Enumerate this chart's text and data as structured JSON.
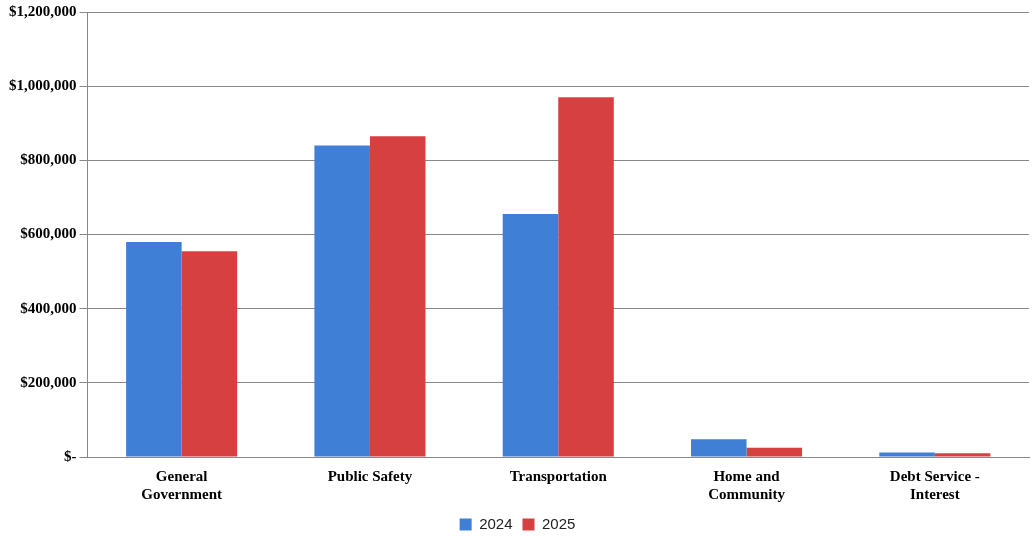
{
  "chart_data": {
    "type": "bar",
    "categories": [
      "General Government",
      "Public Safety",
      "Transportation",
      "Home and Community",
      "Debt Service - Interest"
    ],
    "series": [
      {
        "name": "2024",
        "color": "#3f7fd6",
        "values": [
          580000,
          840000,
          655000,
          48000,
          12000
        ]
      },
      {
        "name": "2025",
        "color": "#d64040",
        "values": [
          555000,
          865000,
          970000,
          25000,
          10000
        ]
      }
    ],
    "ylim": [
      0,
      1200000
    ],
    "yticks": [
      {
        "value": 0,
        "label": "$-"
      },
      {
        "value": 200000,
        "label": "$200,000"
      },
      {
        "value": 400000,
        "label": "$400,000"
      },
      {
        "value": 600000,
        "label": "$600,000"
      },
      {
        "value": 800000,
        "label": "$800,000"
      },
      {
        "value": 1000000,
        "label": "$1,000,000"
      },
      {
        "value": 1200000,
        "label": "$1,200,000"
      }
    ],
    "grid": "y",
    "legend": "bottom"
  }
}
